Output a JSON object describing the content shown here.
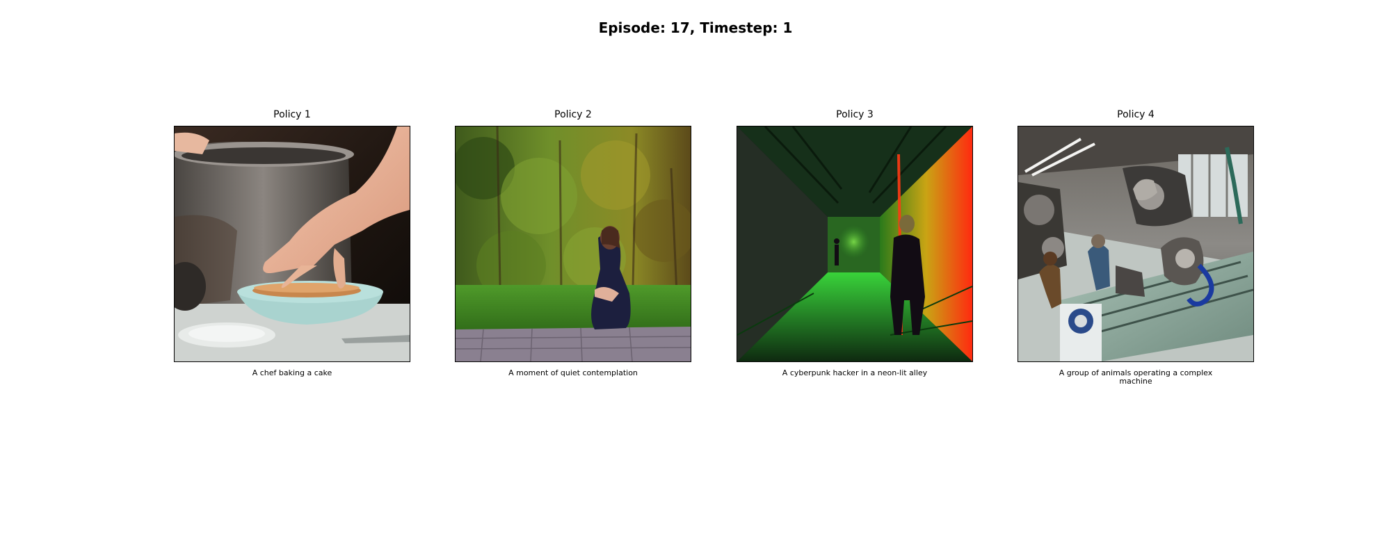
{
  "figure": {
    "title": "Episode: 17, Timestep: 1"
  },
  "panels": [
    {
      "title": "Policy 1",
      "caption": "A chef baking a cake",
      "image": "chef-baking-cake-image"
    },
    {
      "title": "Policy 2",
      "caption": "A moment of quiet contemplation",
      "image": "woman-sitting-on-grass-image"
    },
    {
      "title": "Policy 3",
      "caption": "A cyberpunk hacker in a neon-lit alley",
      "image": "neon-alley-figure-image"
    },
    {
      "title": "Policy 4",
      "caption": "A group of animals operating a complex machine",
      "image": "animals-operating-machine-image"
    }
  ]
}
